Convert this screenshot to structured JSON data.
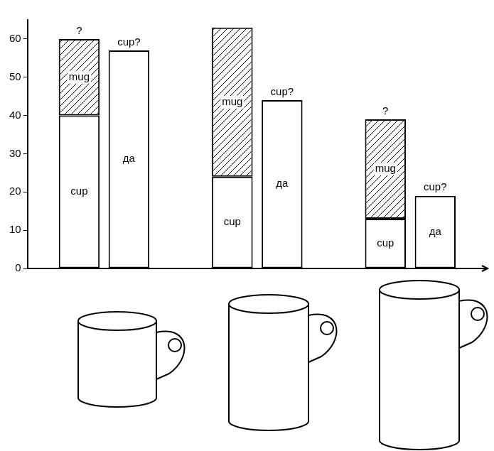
{
  "chart_data": {
    "type": "bar",
    "stacked": true,
    "categories": [
      null,
      null,
      null
    ],
    "stacks": [
      {
        "series": [
          {
            "name": "cup",
            "color": "#ffffff",
            "values": [
              40,
              24,
              13
            ]
          },
          {
            "name": "mug",
            "color": "#000000",
            "values": [
              20,
              39,
              26
            ]
          }
        ],
        "top_labels": [
          "?",
          null,
          "?"
        ]
      },
      {
        "series": [
          {
            "name": "да",
            "color": "#ffffff",
            "values": [
              57,
              44,
              19
            ]
          }
        ],
        "top_labels": [
          "cup?",
          "cup?",
          "cup?"
        ]
      }
    ],
    "ylim": [
      0,
      65
    ],
    "yticks": [
      0,
      10,
      20,
      30,
      40,
      50,
      60
    ],
    "grid": false,
    "tick_labels": "y"
  }
}
